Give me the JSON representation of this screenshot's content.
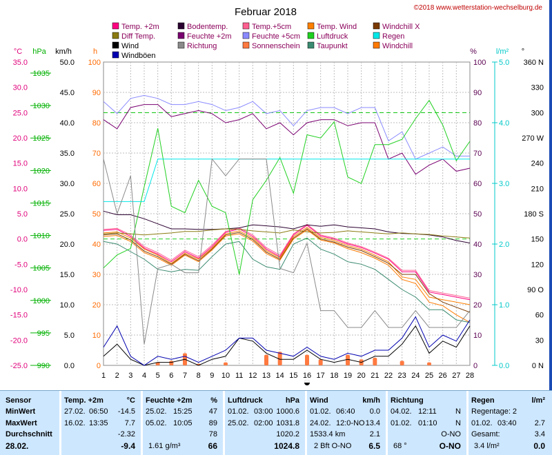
{
  "chart_data": {
    "type": "line",
    "title": "Februar 2018",
    "copyright": "©2018 www.wetterstation-wechselburg.de",
    "x": [
      1,
      2,
      3,
      4,
      5,
      6,
      7,
      8,
      9,
      10,
      11,
      12,
      13,
      14,
      15,
      16,
      17,
      18,
      19,
      20,
      21,
      22,
      23,
      24,
      25,
      26,
      27,
      28
    ],
    "xlim": [
      1,
      28
    ],
    "axes": {
      "temp": {
        "label": "°C",
        "color": "#e0007a",
        "ticks": [
          35.0,
          30.0,
          25.0,
          20.0,
          15.0,
          10.0,
          5.0,
          0.0,
          -5.0,
          -10.0,
          -15.0,
          -20.0,
          -25.0
        ],
        "ticks_label": [
          "35.0",
          "30.0",
          "25.0",
          "20.0",
          "15.0",
          "10.0",
          "5.0",
          "0.0",
          "-5.0",
          "-10.0",
          "-15.0",
          "-20.0",
          "-25.0"
        ],
        "range": [
          -25,
          35
        ]
      },
      "pressure": {
        "label": "hPa",
        "color": "#00b000",
        "ticks": [
          1035,
          1030,
          1025,
          1020,
          1015,
          1010,
          1005,
          1000,
          995,
          990
        ],
        "range": [
          990,
          1036.7
        ]
      },
      "wind": {
        "label": "km/h",
        "color": "#000000",
        "ticks": [
          "50.0",
          "45.0",
          "40.0",
          "35.0",
          "30.0",
          "25.0",
          "20.0",
          "15.0",
          "10.0",
          "5.0",
          "0.0"
        ],
        "range": [
          0,
          50
        ]
      },
      "hours": {
        "label": "h",
        "color": "#ff6a00",
        "ticks": [
          "100",
          "90",
          "80",
          "70",
          "60",
          "50",
          "40",
          "30",
          "20",
          "10",
          "0"
        ],
        "range": [
          0,
          100
        ]
      },
      "percent": {
        "label": "%",
        "color": "#5a0050",
        "ticks": [
          "100",
          "90",
          "80",
          "70",
          "60",
          "50",
          "40",
          "30",
          "20",
          "10",
          "0"
        ],
        "range": [
          0,
          100
        ]
      },
      "rain": {
        "label": "l/m²",
        "color": "#00c8c8",
        "ticks": [
          "5.0",
          "4.0",
          "3.0",
          "2.0",
          "1.0",
          "0.0"
        ],
        "range": [
          0,
          5
        ]
      },
      "direction": {
        "label": "°",
        "color": "#000000",
        "ticks": [
          "360 N",
          "330",
          "300",
          "270 W",
          "240",
          "210",
          "180 S",
          "150",
          "120",
          "90 O",
          "60",
          "30",
          "0 N"
        ],
        "range": [
          0,
          360
        ]
      }
    },
    "legend": [
      {
        "name": "Temp. +2m",
        "color": "#ff0080"
      },
      {
        "name": "Bodentemp.",
        "color": "#2a0030"
      },
      {
        "name": "Temp.+5cm",
        "color": "#ff6090"
      },
      {
        "name": "Temp. Wind",
        "color": "#ff8000"
      },
      {
        "name": "Windchill X",
        "color": "#7a3a00"
      },
      {
        "name": "Diff Temp.",
        "color": "#8a7a10"
      },
      {
        "name": "Feuchte +2m",
        "color": "#7a0070"
      },
      {
        "name": "Feuchte +5cm",
        "color": "#8a8aff"
      },
      {
        "name": "Luftdruck",
        "color": "#20d020"
      },
      {
        "name": "Regen",
        "color": "#00e8e8"
      },
      {
        "name": "Wind",
        "color": "#000000"
      },
      {
        "name": "Richtung",
        "color": "#8a8a8a"
      },
      {
        "name": "Sonnenschein",
        "color": "#ff7a40"
      },
      {
        "name": "Taupunkt",
        "color": "#3a8a70"
      },
      {
        "name": "Windchill",
        "color": "#ff7a00"
      },
      {
        "name": "Windböen",
        "color": "#0000b0"
      }
    ],
    "series": [
      {
        "name": "Temp. +2m",
        "axis": "temp",
        "color": "#ff0080",
        "values": [
          1.7,
          1.9,
          0.5,
          -1.8,
          -3.0,
          -4.5,
          -2.5,
          -3.8,
          -1.5,
          1.3,
          2.0,
          0.5,
          -2.0,
          -3.5,
          0.8,
          2.7,
          0.6,
          0.0,
          -1.0,
          -1.7,
          -2.8,
          -4.0,
          -6.5,
          -6.5,
          -10.5,
          -11.0,
          -11.5,
          -12.0
        ]
      },
      {
        "name": "Temp.+5cm",
        "axis": "temp",
        "color": "#ff6090",
        "values": [
          1.9,
          2.1,
          0.8,
          -1.5,
          -2.7,
          -4.2,
          -2.2,
          -3.5,
          -1.2,
          1.5,
          2.2,
          0.8,
          -1.7,
          -3.2,
          1.0,
          2.9,
          0.8,
          0.2,
          -0.8,
          -1.5,
          -2.6,
          -3.8,
          -6.2,
          -6.2,
          -10.2,
          -10.7,
          -11.2,
          -11.7
        ]
      },
      {
        "name": "Temp. Wind",
        "axis": "temp",
        "color": "#ff8000",
        "values": [
          1.2,
          1.4,
          0.2,
          -2.0,
          -3.2,
          -4.8,
          -2.8,
          -4.0,
          -1.8,
          1.0,
          1.6,
          0.2,
          -2.3,
          -3.7,
          0.5,
          2.3,
          0.3,
          -0.3,
          -1.3,
          -2.0,
          -3.2,
          -4.5,
          -7.5,
          -8.0,
          -11.5,
          -12.0,
          -12.5,
          -13.0
        ]
      },
      {
        "name": "Bodentemp.",
        "axis": "temp",
        "color": "#2a0030",
        "values": [
          5.5,
          4.8,
          4.8,
          4.0,
          3.0,
          2.0,
          2.0,
          1.9,
          1.9,
          2.0,
          2.2,
          2.8,
          2.6,
          2.4,
          2.0,
          2.8,
          2.5,
          2.8,
          2.4,
          2.2,
          2.0,
          1.4,
          1.1,
          1.0,
          0.8,
          0.4,
          -0.3,
          -0.8
        ]
      },
      {
        "name": "Diff Temp.",
        "axis": "temp",
        "color": "#8a7a10",
        "values": [
          1.0,
          1.2,
          1.0,
          0.8,
          1.0,
          1.2,
          1.5,
          1.5,
          1.8,
          2.0,
          1.9,
          1.6,
          1.4,
          1.2,
          1.8,
          1.4,
          1.2,
          1.3,
          1.6,
          1.4,
          1.2,
          1.0,
          1.2,
          1.0,
          0.9,
          0.6,
          0.4,
          0.2
        ]
      },
      {
        "name": "Windchill X",
        "axis": "temp",
        "color": "#7a3a00",
        "values": [
          0.8,
          1.0,
          -0.2,
          -2.4,
          -3.5,
          -5.0,
          -3.0,
          -4.3,
          -2.0,
          0.8,
          1.3,
          -0.1,
          -2.6,
          -4.0,
          0.2,
          2.0,
          0.0,
          -0.6,
          -1.6,
          -2.3,
          -3.5,
          -4.8,
          -7.0,
          -7.0,
          -10.8,
          -12.5,
          -13.5,
          -14.5
        ]
      },
      {
        "name": "Windchill",
        "axis": "temp",
        "color": "#ff7a00",
        "values": [
          0.5,
          0.7,
          -0.5,
          -2.7,
          -3.8,
          -5.2,
          -3.2,
          -4.5,
          -2.2,
          0.6,
          1.0,
          -0.4,
          -2.9,
          -4.2,
          0.0,
          1.8,
          -0.2,
          -0.8,
          -1.9,
          -2.7,
          -3.8,
          -5.2,
          -8.0,
          -8.8,
          -12.5,
          -13.2,
          -15.0,
          -16.5
        ]
      },
      {
        "name": "Taupunkt",
        "axis": "temp",
        "color": "#3a8a70",
        "values": [
          -0.5,
          -1.0,
          -2.5,
          -4.0,
          -6.0,
          -6.5,
          -6.0,
          -6.2,
          -3.5,
          -1.0,
          -0.5,
          -4.0,
          -5.5,
          -6.0,
          -1.0,
          0.2,
          -2.0,
          -3.0,
          -4.5,
          -5.0,
          -6.0,
          -8.0,
          -10.0,
          -11.5,
          -14.0,
          -14.0,
          -16.0,
          -16.5
        ]
      },
      {
        "name": "Feuchte +2m",
        "axis": "percent",
        "color": "#7a0070",
        "values": [
          81,
          78,
          85,
          86,
          86,
          82,
          83,
          84,
          83,
          80,
          81,
          83,
          78,
          80,
          76,
          80,
          81,
          81,
          79,
          80,
          80,
          68,
          70,
          63,
          66,
          68,
          64,
          65
        ]
      },
      {
        "name": "Feuchte +5cm",
        "axis": "percent",
        "color": "#8a8aff",
        "values": [
          87,
          83,
          88,
          89,
          88,
          86,
          86,
          87,
          86,
          84,
          85,
          87,
          83,
          84,
          79,
          84,
          85,
          85,
          83,
          85,
          85,
          74,
          77,
          68,
          70,
          72,
          69,
          69
        ]
      },
      {
        "name": "Luftdruck",
        "axis": "pressure",
        "color": "#20d020",
        "values": [
          1005.0,
          1007.0,
          1008.0,
          1017.5,
          1026.5,
          1014.5,
          1013.5,
          1018.5,
          1014.5,
          1013.5,
          1004.0,
          1015.5,
          1018.5,
          1022.0,
          1016.5,
          1025.5,
          1025.0,
          1027.5,
          1019.0,
          1018.0,
          1024.0,
          1024.0,
          1024.8,
          1028.0,
          1030.8,
          1027.0,
          1021.5,
          1024.5
        ]
      },
      {
        "name": "Regen",
        "axis": "rain",
        "color": "#00e8e8",
        "values": [
          2.7,
          2.7,
          2.7,
          2.7,
          3.4,
          3.4,
          3.4,
          3.4,
          3.4,
          3.4,
          3.4,
          3.4,
          3.4,
          3.4,
          3.4,
          3.4,
          3.4,
          3.4,
          3.4,
          3.4,
          3.4,
          3.4,
          3.4,
          3.4,
          3.4,
          3.4,
          3.4,
          3.4
        ]
      },
      {
        "name": "Wind",
        "axis": "wind",
        "color": "#000000",
        "values": [
          1.5,
          3.5,
          1.0,
          0.0,
          0.5,
          0.5,
          1.0,
          0.0,
          1.0,
          1.5,
          4.5,
          4.0,
          2.0,
          1.0,
          1.0,
          2.5,
          1.0,
          0.5,
          1.0,
          0.5,
          1.5,
          1.5,
          3.5,
          6.5,
          2.0,
          4.0,
          3.0,
          6.5
        ]
      },
      {
        "name": "Windböen",
        "axis": "wind",
        "color": "#0000b0",
        "values": [
          3.0,
          6.5,
          1.5,
          0.0,
          1.5,
          1.0,
          1.5,
          0.5,
          1.5,
          2.5,
          4.5,
          4.5,
          2.5,
          2.0,
          1.5,
          3.0,
          1.5,
          1.0,
          2.0,
          1.5,
          2.5,
          2.5,
          4.5,
          8.0,
          3.0,
          5.0,
          4.0,
          7.5
        ]
      },
      {
        "name": "Richtung",
        "axis": "direction",
        "color": "#8a8a8a",
        "values": [
          245,
          180,
          225,
          25,
          115,
          120,
          110,
          110,
          245,
          225,
          245,
          245,
          245,
          115,
          110,
          145,
          65,
          65,
          45,
          45,
          65,
          45,
          45,
          65,
          45,
          45,
          45,
          65
        ]
      }
    ],
    "sunshine": {
      "axis": "hours",
      "color": "#ff7a40",
      "values": [
        0,
        0,
        0,
        0,
        1,
        1.5,
        4,
        0.5,
        0,
        1,
        0,
        0,
        3.5,
        4.5,
        0,
        3.5,
        2,
        0,
        3.5,
        2,
        2.5,
        0,
        1.5,
        0,
        1,
        0,
        0,
        0
      ]
    },
    "dashed_lines": [
      {
        "axis": "temp",
        "value": 25.0,
        "color": "#00c000"
      },
      {
        "axis": "temp",
        "value": 0.0,
        "color": "#20d020"
      }
    ]
  },
  "summary": {
    "sensor": {
      "header": "Sensor",
      "min": "MinWert",
      "max": "MaxWert",
      "avg": "Durchschnitt",
      "date": "28.02."
    },
    "temp": {
      "header": "Temp. +2m",
      "unit": "°C",
      "min_date": "27.02.",
      "min_time": "06:50",
      "min_val": "-14.5",
      "max_date": "16.02.",
      "max_time": "13:35",
      "max_val": "7.7",
      "avg": "-2.32",
      "current": "-9.4"
    },
    "humidity": {
      "header": "Feuchte +2m",
      "unit": "%",
      "min_date": "25.02.",
      "min_time": "15:25",
      "min_val": "47",
      "max_date": "05.02.",
      "max_time": "10:05",
      "max_val": "89",
      "avg": "78",
      "extra": "1.61 g/m³",
      "current": "66"
    },
    "pressure": {
      "header": "Luftdruck",
      "unit": "hPa",
      "min_date": "01.02.",
      "min_time": "03:00",
      "min_val": "1000.6",
      "max_date": "25.02.",
      "max_time": "02:00",
      "max_val": "1031.8",
      "avg": "1020.2",
      "current": "1024.8"
    },
    "wind": {
      "header": "Wind",
      "unit": "km/h",
      "min_date": "01.02.",
      "min_time": "06:40",
      "min_val": "0.0",
      "max_date": "24.02.",
      "max_time": "12:0-NO",
      "max_val": "13.4",
      "dist": "1533.4 km",
      "avg": "2.1",
      "extra": "2 Bft O-NO",
      "current": "6.5"
    },
    "direction": {
      "header": "Richtung",
      "min_date": "04.02.",
      "min_time": "12:11",
      "min_val": "N",
      "max_date": "01.02.",
      "max_time": "01:10",
      "max_val": "N",
      "avg": "O-NO",
      "deg": "68 °",
      "current": "O-NO"
    },
    "rain": {
      "header": "Regen",
      "unit": "l/m²",
      "days": "Regentage: 2",
      "max_date": "01.02.",
      "max_time": "03:40",
      "max_val": "2.7",
      "total_label": "Gesamt:",
      "total": "3.4",
      "current_label": "3.4 l/m²",
      "current": "0.0"
    }
  }
}
